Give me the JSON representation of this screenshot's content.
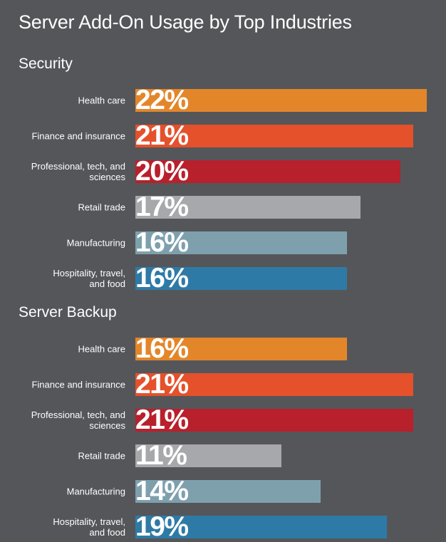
{
  "chart_data": {
    "type": "bar",
    "title": "Server Add-On Usage by Top Industries",
    "categories": [
      "Health care",
      "Finance and insurance",
      "Professional, tech, and sciences",
      "Retail trade",
      "Manufacturing",
      "Hospitality, travel, and food"
    ],
    "category_display": [
      "Health care",
      "Finance and insurance",
      "Professional, tech, and\nsciences",
      "Retail trade",
      "Manufacturing",
      "Hospitality, travel,\nand food"
    ],
    "colors": [
      "#e3862a",
      "#e4512b",
      "#b8202c",
      "#a7a8ab",
      "#7ea0ad",
      "#2e7aa6"
    ],
    "series": [
      {
        "name": "Security",
        "values": [
          22,
          21,
          20,
          17,
          16,
          16
        ]
      },
      {
        "name": "Server Backup",
        "values": [
          16,
          21,
          21,
          11,
          14,
          19
        ]
      }
    ],
    "value_suffix": "%",
    "xlim": [
      0,
      22
    ],
    "grid": false,
    "legend": "none"
  }
}
